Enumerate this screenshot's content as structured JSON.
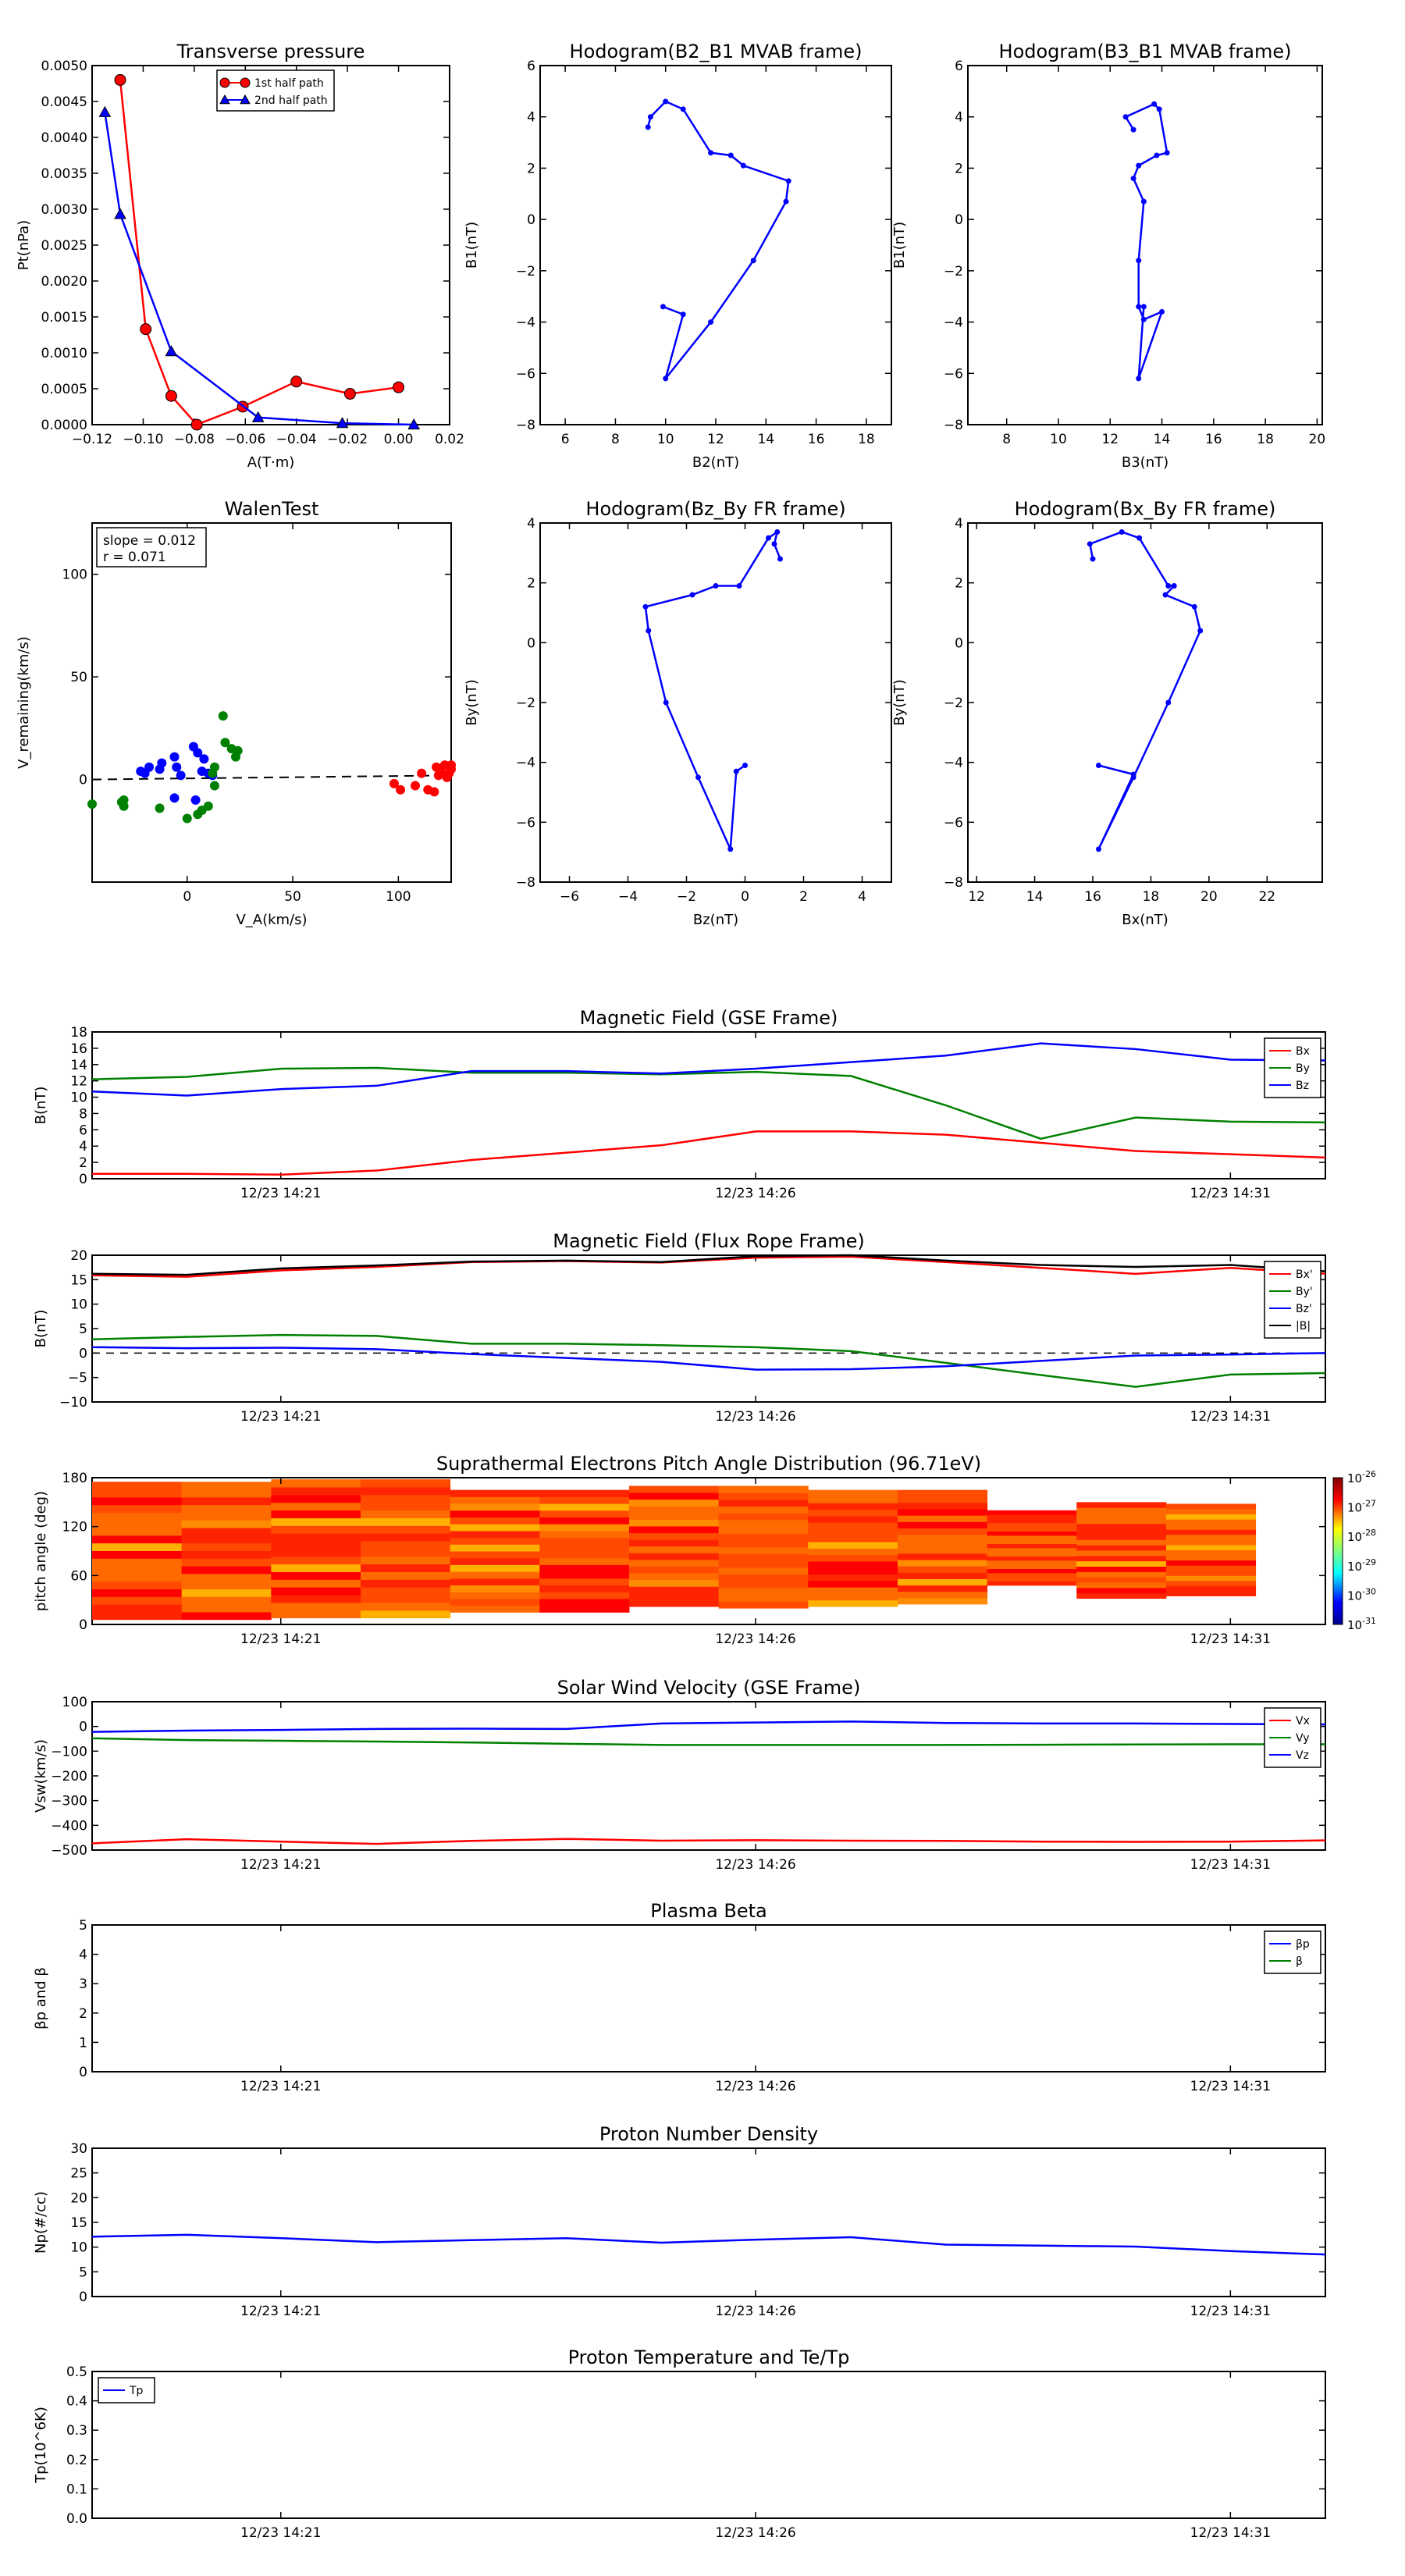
{
  "colors": {
    "red": "#ff0000",
    "green": "#008000",
    "blue": "#0000ff",
    "black": "#000000"
  },
  "time_ticks": [
    "12/23 14:21",
    "12/23 14:26",
    "12/23 14:31"
  ],
  "chart_data": [
    {
      "id": "pt",
      "type": "line",
      "title": "Transverse pressure",
      "xlabel": "A(T·m)",
      "ylabel": "Pt(nPa)",
      "xlim": [
        -0.12,
        0.02
      ],
      "ylim": [
        0,
        0.005
      ],
      "xticks": [
        "−0.12",
        "−0.10",
        "−0.08",
        "−0.06",
        "−0.04",
        "−0.02",
        "0.00",
        "0.02"
      ],
      "yticks": [
        "0.0000",
        "0.0005",
        "0.0010",
        "0.0015",
        "0.0020",
        "0.0025",
        "0.0030",
        "0.0035",
        "0.0040",
        "0.0045",
        "0.0050"
      ],
      "legend": "upper center",
      "series": [
        {
          "name": "1st half path",
          "color": "#ff0000",
          "marker": "circle",
          "x": [
            -0.109,
            -0.099,
            -0.089,
            -0.079,
            -0.061,
            -0.04,
            -0.019,
            0.0
          ],
          "y": [
            0.0048,
            0.00133,
            0.0004,
            0.0,
            0.00025,
            0.0006,
            0.00043,
            0.00052
          ]
        },
        {
          "name": "2nd half path",
          "color": "#0000ff",
          "marker": "triangle",
          "x": [
            -0.115,
            -0.109,
            -0.089,
            -0.055,
            -0.022,
            0.006
          ],
          "y": [
            0.00435,
            0.00293,
            0.00102,
            0.0001,
            2e-05,
            0.0
          ]
        }
      ]
    },
    {
      "id": "hodo1",
      "type": "line",
      "title": "Hodogram(B2_B1 MVAB frame)",
      "xlabel": "B2(nT)",
      "ylabel": "B1(nT)",
      "xlim": [
        5,
        19
      ],
      "ylim": [
        -8,
        6
      ],
      "xticks": [
        "6",
        "8",
        "10",
        "12",
        "14",
        "16",
        "18"
      ],
      "yticks": [
        "−8",
        "−6",
        "−4",
        "−2",
        "0",
        "2",
        "4",
        "6"
      ],
      "series": [
        {
          "color": "#0000ff",
          "x": [
            9.3,
            9.4,
            10.0,
            10.7,
            11.8,
            12.6,
            13.1,
            14.9,
            14.8,
            13.5,
            11.8,
            10.0,
            10.7,
            9.9
          ],
          "y": [
            3.6,
            4.0,
            4.6,
            4.3,
            2.6,
            2.5,
            2.1,
            1.5,
            0.7,
            -1.6,
            -4.0,
            -6.2,
            -3.7,
            -3.4
          ]
        }
      ]
    },
    {
      "id": "hodo2",
      "type": "line",
      "title": "Hodogram(B3_B1 MVAB frame)",
      "xlabel": "B3(nT)",
      "ylabel": "B1(nT)",
      "xlim": [
        6.5,
        20.2
      ],
      "ylim": [
        -8,
        6
      ],
      "xticks": [
        "8",
        "10",
        "12",
        "14",
        "16",
        "18",
        "20"
      ],
      "yticks": [
        "−8",
        "−6",
        "−4",
        "−2",
        "0",
        "2",
        "4",
        "6"
      ],
      "series": [
        {
          "color": "#0000ff",
          "x": [
            12.9,
            12.6,
            13.7,
            13.9,
            14.2,
            13.8,
            13.1,
            12.9,
            13.3,
            13.1,
            13.1,
            13.3,
            14.0,
            13.1,
            13.3
          ],
          "y": [
            3.5,
            4.0,
            4.5,
            4.3,
            2.6,
            2.5,
            2.1,
            1.6,
            0.7,
            -1.6,
            -3.4,
            -3.9,
            -3.6,
            -6.2,
            -3.4
          ]
        }
      ]
    },
    {
      "id": "walen",
      "type": "scatter",
      "title": "WalenTest",
      "xlabel": "V_A(km/s)",
      "ylabel": "V_remaining(km/s)",
      "xlim": [
        -45,
        125
      ],
      "ylim": [
        -50,
        125
      ],
      "xticks": [
        "0",
        "50",
        "100"
      ],
      "yticks": [
        "0",
        "50",
        "100"
      ],
      "annotation": [
        "slope = 0.012",
        "r = 0.071"
      ],
      "series": [
        {
          "color": "#0000ff",
          "x": [
            -22,
            -20,
            -18,
            -13,
            -12,
            -6,
            -5,
            -3,
            3,
            5,
            7,
            8,
            10,
            12,
            4,
            -6
          ],
          "y": [
            4,
            3,
            6,
            5,
            8,
            11,
            6,
            2,
            16,
            13,
            4,
            10,
            3,
            2,
            -10,
            -9
          ]
        },
        {
          "color": "#008000",
          "x": [
            -47,
            -31,
            -30,
            -30,
            -13,
            0,
            5,
            7,
            10,
            12,
            13,
            17,
            18,
            21,
            23,
            24,
            13
          ],
          "y": [
            -12,
            -11,
            -13,
            -10,
            -14,
            -19,
            -17,
            -15,
            -13,
            3,
            6,
            31,
            18,
            15,
            11,
            14,
            -3
          ]
        },
        {
          "color": "#ff0000",
          "x": [
            98,
            101,
            108,
            111,
            114,
            117,
            118,
            119,
            120,
            122,
            123,
            124,
            125,
            126
          ],
          "y": [
            -2,
            -5,
            -3,
            3,
            -5,
            -6,
            6,
            2,
            4,
            7,
            1,
            3,
            5,
            7
          ]
        }
      ]
    },
    {
      "id": "hodo3",
      "type": "line",
      "title": "Hodogram(Bz_By FR frame)",
      "xlabel": "Bz(nT)",
      "ylabel": "By(nT)",
      "xlim": [
        -7,
        5
      ],
      "ylim": [
        -8,
        4
      ],
      "xticks": [
        "−6",
        "−4",
        "−2",
        "0",
        "2",
        "4"
      ],
      "yticks": [
        "−8",
        "−6",
        "−4",
        "−2",
        "0",
        "2",
        "4"
      ],
      "series": [
        {
          "color": "#0000ff",
          "x": [
            1.2,
            1.0,
            1.1,
            0.8,
            -0.2,
            -1.0,
            -1.8,
            -3.4,
            -3.3,
            -2.7,
            -1.6,
            -0.5,
            -0.3,
            0.0
          ],
          "y": [
            2.8,
            3.3,
            3.7,
            3.5,
            1.9,
            1.9,
            1.6,
            1.2,
            0.4,
            -2.0,
            -4.5,
            -6.9,
            -4.3,
            -4.1
          ]
        }
      ]
    },
    {
      "id": "hodo4",
      "type": "line",
      "title": "Hodogram(Bx_By FR frame)",
      "xlabel": "Bx(nT)",
      "ylabel": "By(nT)",
      "xlim": [
        11.7,
        23.9
      ],
      "ylim": [
        -8,
        4
      ],
      "xticks": [
        "12",
        "14",
        "16",
        "18",
        "20",
        "22"
      ],
      "yticks": [
        "−8",
        "−6",
        "−4",
        "−2",
        "0",
        "2",
        "4"
      ],
      "series": [
        {
          "color": "#0000ff",
          "x": [
            16.0,
            15.9,
            17.0,
            17.6,
            18.6,
            18.8,
            18.5,
            19.5,
            19.7,
            18.6,
            17.4,
            16.2,
            17.4,
            16.2
          ],
          "y": [
            2.8,
            3.3,
            3.7,
            3.5,
            1.9,
            1.9,
            1.6,
            1.2,
            0.4,
            -2.0,
            -4.5,
            -6.9,
            -4.4,
            -4.1
          ]
        }
      ]
    },
    {
      "id": "bgse",
      "type": "line",
      "title": "Magnetic Field (GSE Frame)",
      "ylabel": "B(nT)",
      "ylim": [
        0,
        18
      ],
      "yticks": [
        "0",
        "2",
        "4",
        "6",
        "8",
        "10",
        "12",
        "14",
        "16",
        "18"
      ],
      "legend": "upper right",
      "x": [
        0,
        1,
        2,
        3,
        4,
        5,
        6,
        7,
        8,
        9,
        10,
        11,
        12,
        13
      ],
      "series": [
        {
          "name": "Bx",
          "color": "#ff0000",
          "values": [
            0.6,
            0.6,
            0.5,
            1.0,
            2.3,
            3.2,
            4.1,
            5.8,
            5.8,
            5.4,
            4.4,
            3.4,
            3.0,
            2.6
          ]
        },
        {
          "name": "By",
          "color": "#008000",
          "values": [
            12.2,
            12.5,
            13.5,
            13.6,
            13.0,
            13.0,
            12.8,
            13.1,
            12.6,
            9.0,
            4.9,
            7.5,
            7.0,
            6.9
          ]
        },
        {
          "name": "Bz",
          "color": "#0000ff",
          "values": [
            10.7,
            10.2,
            11.0,
            11.4,
            13.2,
            13.2,
            12.9,
            13.5,
            14.3,
            15.1,
            16.6,
            15.9,
            14.6,
            14.5
          ]
        }
      ]
    },
    {
      "id": "bfr",
      "type": "line",
      "title": "Magnetic Field (Flux Rope Frame)",
      "ylabel": "B(nT)",
      "ylim": [
        -10,
        20
      ],
      "yticks": [
        "−10",
        "−5",
        "0",
        "5",
        "10",
        "15",
        "20"
      ],
      "legend": "upper right",
      "x": [
        0,
        1,
        2,
        3,
        4,
        5,
        6,
        7,
        8,
        9,
        10,
        11,
        12,
        13
      ],
      "series": [
        {
          "name": "Bx'",
          "color": "#ff0000",
          "values": [
            15.9,
            15.6,
            16.9,
            17.6,
            18.6,
            18.8,
            18.5,
            19.5,
            19.7,
            18.6,
            17.4,
            16.2,
            17.4,
            16.2
          ]
        },
        {
          "name": "By'",
          "color": "#008000",
          "values": [
            2.8,
            3.3,
            3.7,
            3.5,
            1.9,
            1.9,
            1.6,
            1.2,
            0.4,
            -2.0,
            -4.5,
            -6.9,
            -4.4,
            -4.1
          ]
        },
        {
          "name": "Bz'",
          "color": "#0000ff",
          "values": [
            1.2,
            1.0,
            1.1,
            0.8,
            -0.2,
            -1.0,
            -1.8,
            -3.4,
            -3.3,
            -2.7,
            -1.6,
            -0.5,
            -0.3,
            0.0
          ]
        },
        {
          "name": "|B|",
          "color": "#000000",
          "values": [
            16.2,
            16.0,
            17.3,
            17.9,
            18.7,
            18.9,
            18.6,
            19.8,
            20.0,
            18.9,
            18.0,
            17.6,
            18.0,
            16.7
          ]
        }
      ]
    },
    {
      "id": "pad",
      "type": "heatmap",
      "title": "Suprathermal Electrons Pitch Angle Distribution (96.71eV)",
      "ylabel": "pitch angle (deg)",
      "ylim": [
        0,
        180
      ],
      "yticks": [
        "0",
        "60",
        "120",
        "180"
      ],
      "colorbar_labels": [
        "10^-26",
        "10^-27",
        "10^-28",
        "10^-29",
        "10^-30",
        "10^-31"
      ],
      "columns": [
        {
          "top": 175,
          "bottom": 6
        },
        {
          "top": 175,
          "bottom": 6
        },
        {
          "top": 178,
          "bottom": 8
        },
        {
          "top": 178,
          "bottom": 8
        },
        {
          "top": 165,
          "bottom": 15
        },
        {
          "top": 165,
          "bottom": 15
        },
        {
          "top": 170,
          "bottom": 22
        },
        {
          "top": 170,
          "bottom": 20
        },
        {
          "top": 165,
          "bottom": 22
        },
        {
          "top": 165,
          "bottom": 25
        },
        {
          "top": 140,
          "bottom": 48
        },
        {
          "top": 150,
          "bottom": 32
        },
        {
          "top": 148,
          "bottom": 35
        }
      ]
    },
    {
      "id": "vsw",
      "type": "line",
      "title": "Solar Wind Velocity (GSE Frame)",
      "ylabel": "Vsw(km/s)",
      "ylim": [
        -500,
        100
      ],
      "yticks": [
        "−500",
        "−400",
        "−300",
        "−200",
        "−100",
        "0",
        "100"
      ],
      "legend": "upper right",
      "x": [
        0,
        1,
        2,
        3,
        4,
        5,
        6,
        7,
        8,
        9,
        10,
        11,
        12,
        13
      ],
      "series": [
        {
          "name": "Vx",
          "color": "#ff0000",
          "values": [
            -473,
            -456,
            -466,
            -475,
            -463,
            -455,
            -462,
            -460,
            -462,
            -463,
            -466,
            -467,
            -466,
            -461
          ]
        },
        {
          "name": "Vy",
          "color": "#008000",
          "values": [
            -48,
            -55,
            -58,
            -61,
            -65,
            -70,
            -75,
            -75,
            -75,
            -75,
            -74,
            -73,
            -72,
            -72
          ]
        },
        {
          "name": "Vz",
          "color": "#0000ff",
          "values": [
            -22,
            -17,
            -14,
            -10,
            -9,
            -10,
            12,
            16,
            20,
            14,
            12,
            12,
            10,
            8
          ]
        }
      ]
    },
    {
      "id": "beta",
      "type": "line",
      "title": "Plasma Beta",
      "ylabel": "βp and β",
      "ylim": [
        0,
        5
      ],
      "yticks": [
        "0",
        "1",
        "2",
        "3",
        "4",
        "5"
      ],
      "legend": "upper right",
      "series": [
        {
          "name": "βp",
          "color": "#0000ff",
          "values": []
        },
        {
          "name": "β",
          "color": "#008000",
          "values": []
        }
      ]
    },
    {
      "id": "np",
      "type": "line",
      "title": "Proton Number Density",
      "ylabel": "Np(#/cc)",
      "ylim": [
        0,
        30
      ],
      "yticks": [
        "0",
        "5",
        "10",
        "15",
        "20",
        "25",
        "30"
      ],
      "x": [
        0,
        1,
        2,
        3,
        4,
        5,
        6,
        7,
        8,
        9,
        10,
        11,
        12,
        13
      ],
      "series": [
        {
          "color": "#0000ff",
          "values": [
            12.1,
            12.5,
            11.8,
            11.0,
            11.4,
            11.8,
            10.9,
            11.5,
            12.0,
            10.5,
            10.3,
            10.1,
            9.2,
            8.5
          ]
        }
      ]
    },
    {
      "id": "tp",
      "type": "line",
      "title": "Proton Temperature and Te/Tp",
      "ylabel": "Tp(10^6K)",
      "ylim": [
        0,
        0.5
      ],
      "yticks": [
        "0.0",
        "0.1",
        "0.2",
        "0.3",
        "0.4",
        "0.5"
      ],
      "legend": "upper left",
      "series": [
        {
          "name": "Tp",
          "color": "#0000ff",
          "values": []
        }
      ]
    }
  ]
}
